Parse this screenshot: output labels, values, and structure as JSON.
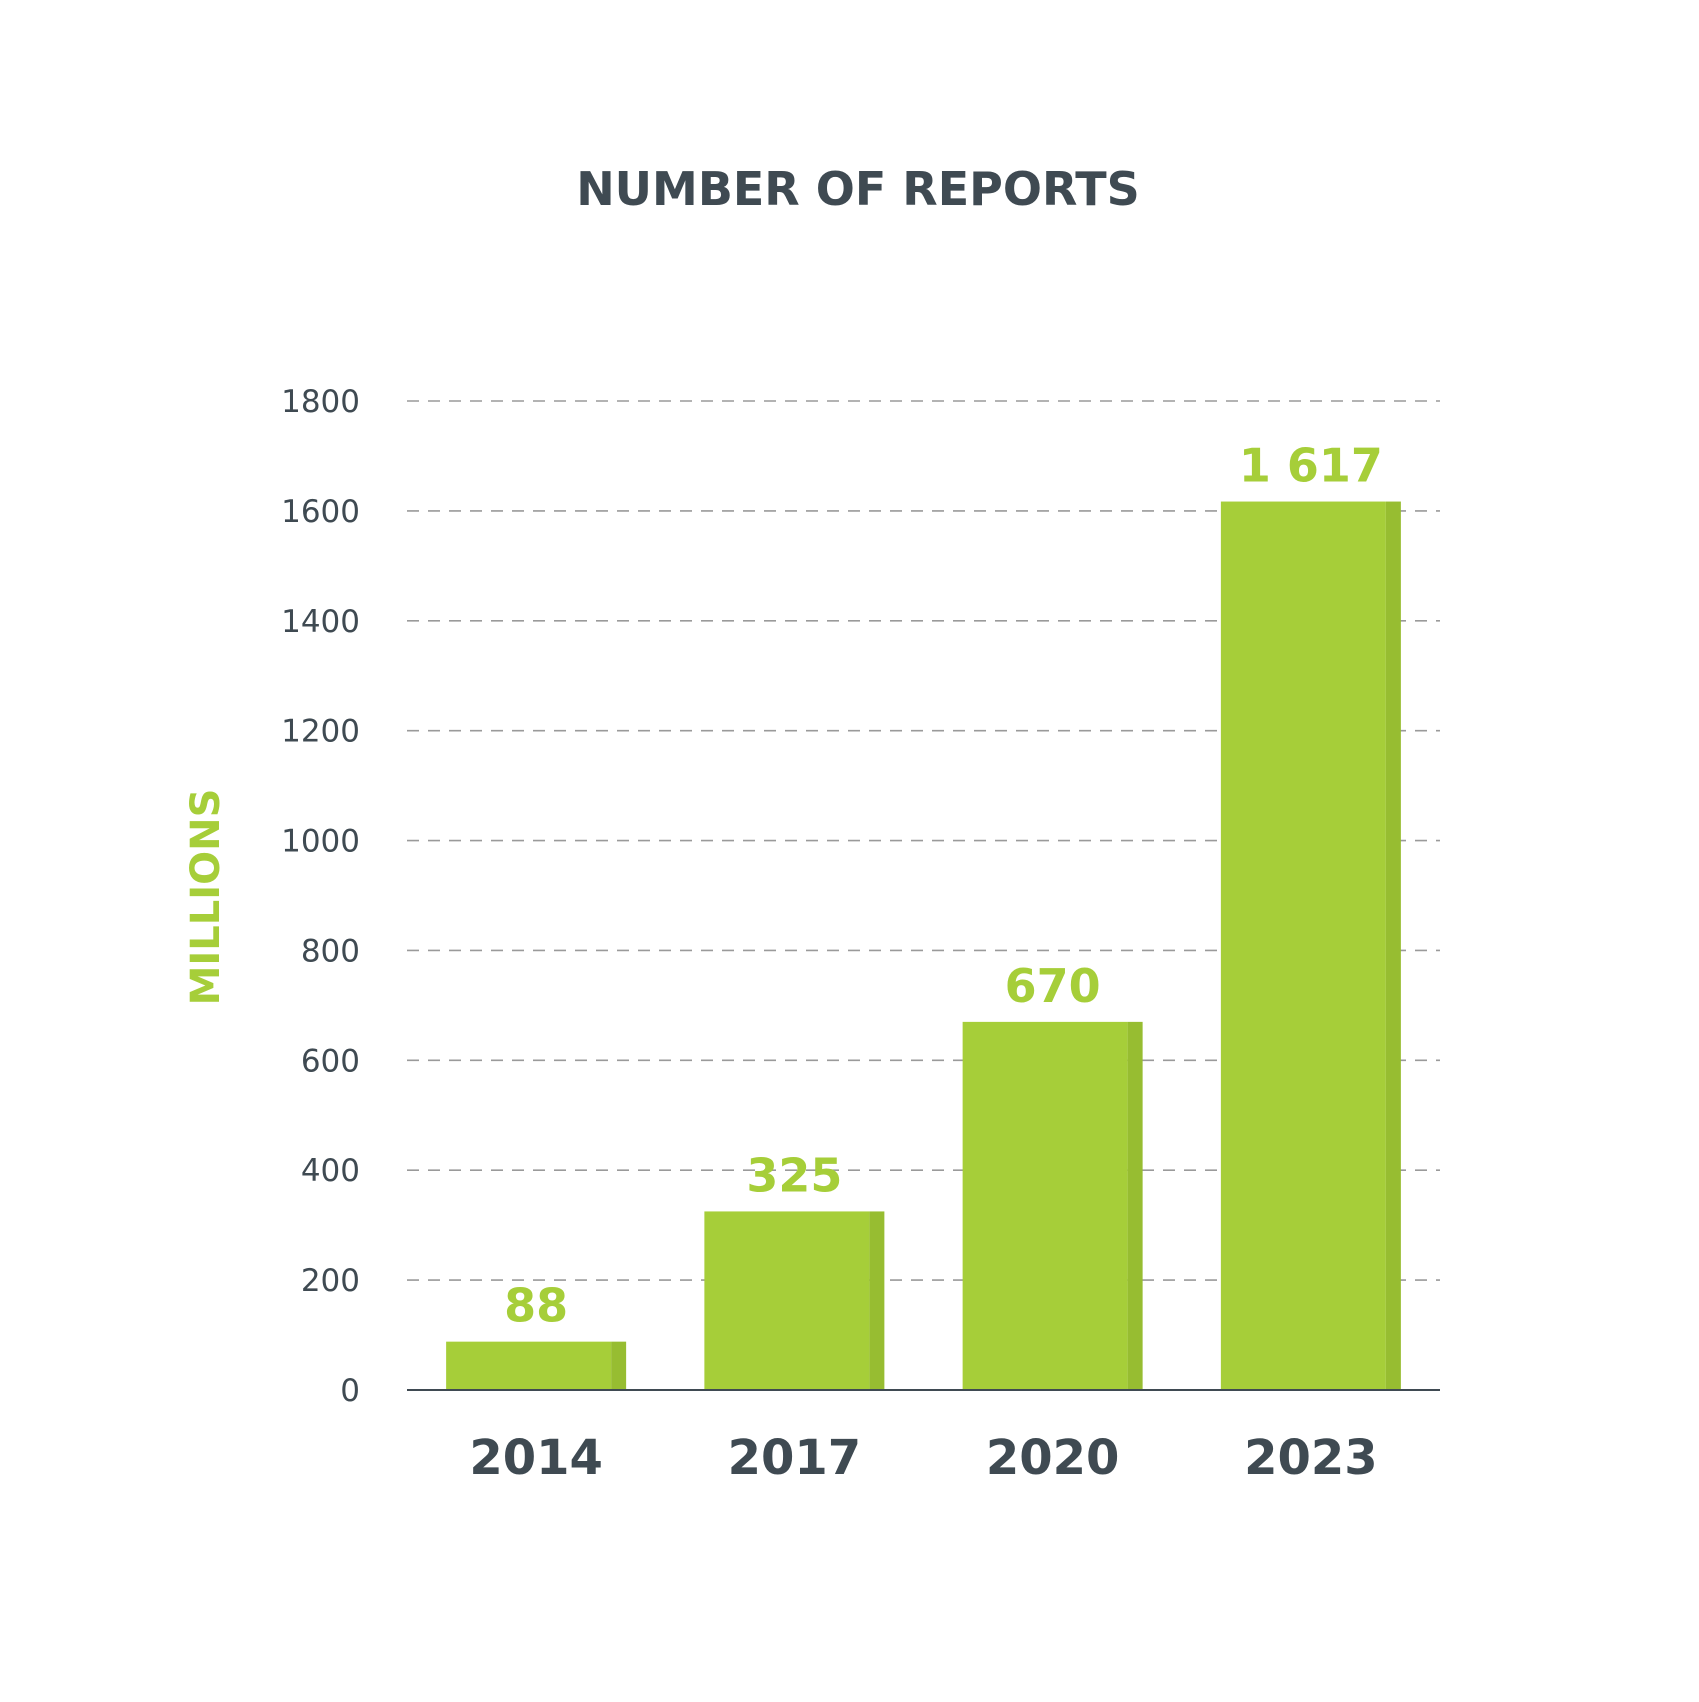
{
  "chart_data": {
    "type": "bar",
    "title": "NUMBER OF REPORTS",
    "xlabel": "",
    "ylabel": "MILLIONS",
    "categories": [
      "2014",
      "2017",
      "2020",
      "2023"
    ],
    "values": [
      88,
      325,
      670,
      1617
    ],
    "data_labels": [
      "88",
      "325",
      "670",
      "1 617"
    ],
    "ylim": [
      0,
      1800
    ],
    "yticks": [
      0,
      200,
      400,
      600,
      800,
      1000,
      1200,
      1400,
      1600,
      1800
    ],
    "ytick_labels": [
      "0",
      "200",
      "400",
      "600",
      "800",
      "1000",
      "1200",
      "1400",
      "1600",
      "1800"
    ],
    "grid": true,
    "legend": "none"
  },
  "colors": {
    "bar": "#a6ce39",
    "bar_shade": "#97bd31",
    "data_label": "#a6ce39",
    "ylabel": "#a6ce39",
    "text": "#3f4a52",
    "grid": "#9a9a9a"
  }
}
